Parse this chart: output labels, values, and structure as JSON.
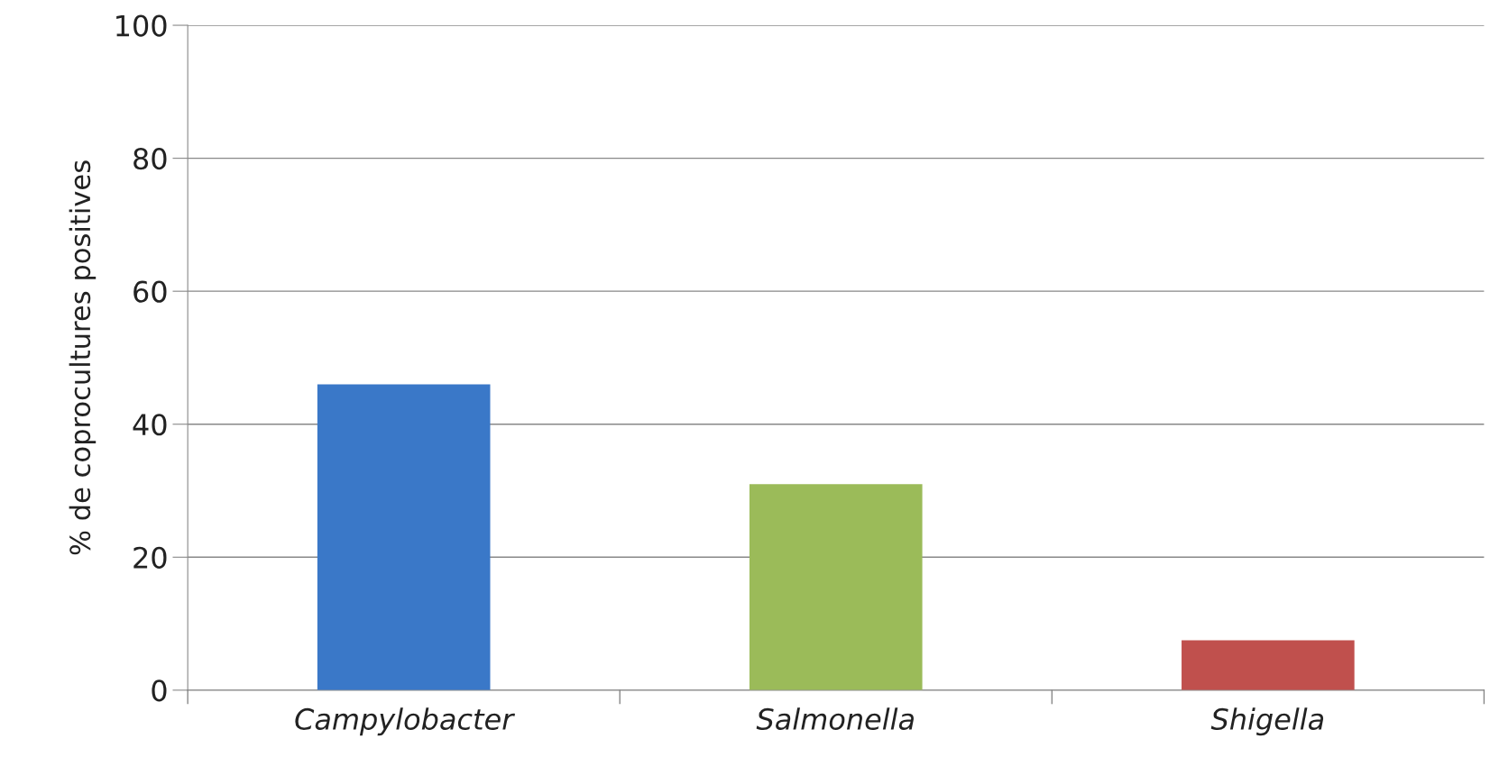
{
  "chart_data": {
    "type": "bar",
    "ylabel": "% de coprocultures positives",
    "categories": [
      "Campylobacter",
      "Salmonella",
      "Shigella"
    ],
    "values": [
      46,
      31,
      7.5
    ],
    "colors": [
      "#3a78c8",
      "#9bbb59",
      "#c0504d"
    ],
    "ylim": [
      0,
      100
    ],
    "yticks": [
      0,
      20,
      40,
      60,
      80,
      100
    ],
    "grid": "y",
    "legend": false
  }
}
